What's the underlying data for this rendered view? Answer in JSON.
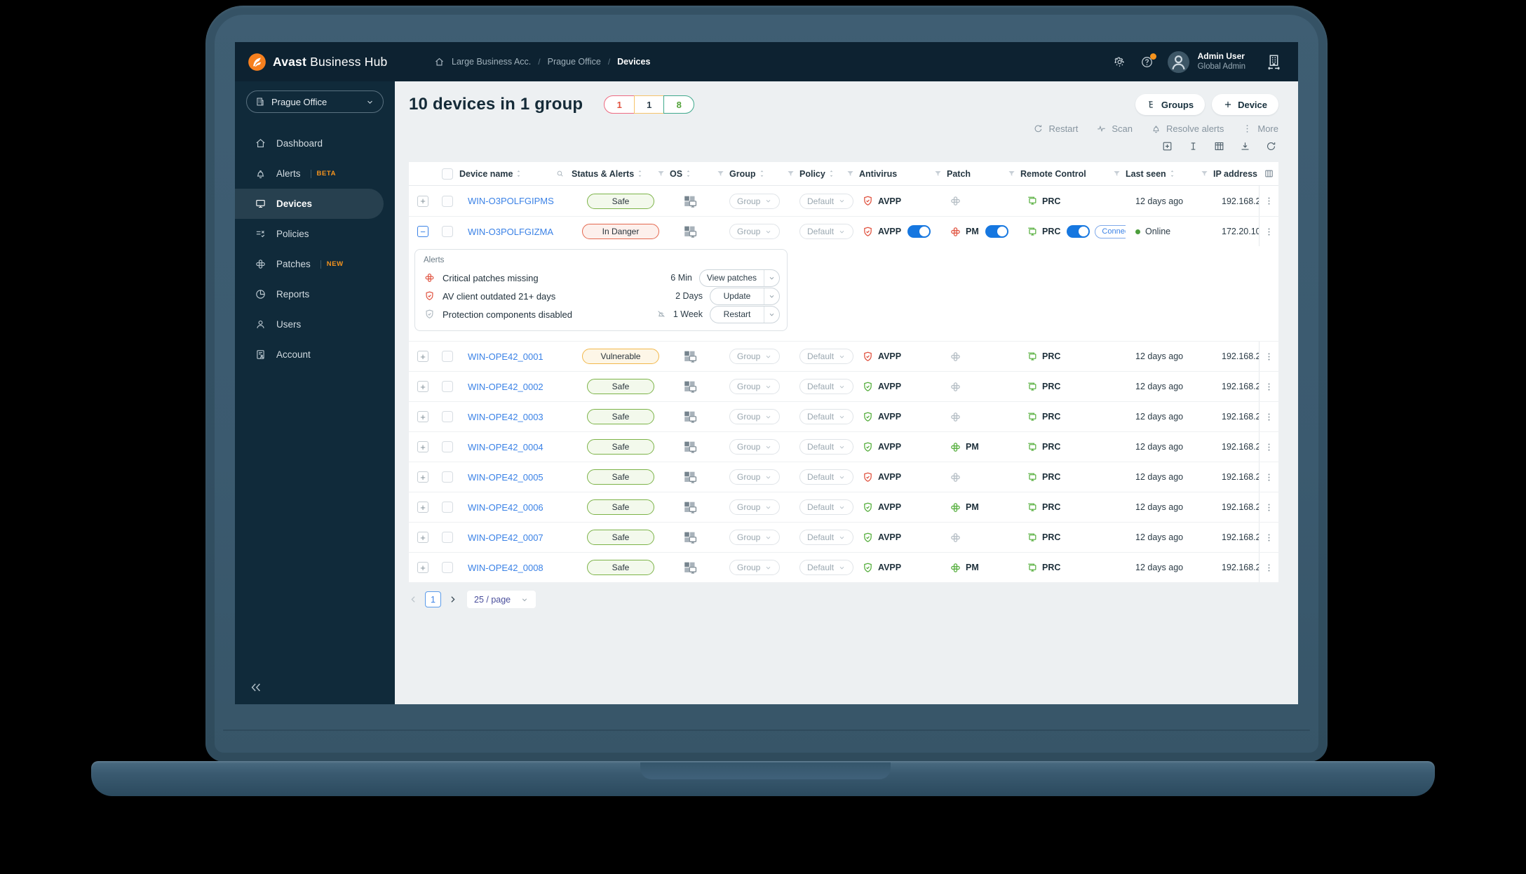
{
  "topbar": {
    "brand_bold": "Avast",
    "brand_rest": "Business Hub",
    "breadcrumb": [
      "Large Business Acc.",
      "Prague Office",
      "Devices"
    ],
    "user_name": "Admin User",
    "user_role": "Global Admin"
  },
  "sidebar": {
    "org": "Prague Office",
    "items": [
      {
        "icon": "dashboard-icon",
        "label": "Dashboard"
      },
      {
        "icon": "alerts-icon",
        "label": "Alerts",
        "badge": "BETA"
      },
      {
        "icon": "devices-icon",
        "label": "Devices",
        "active": true
      },
      {
        "icon": "policies-icon",
        "label": "Policies"
      },
      {
        "icon": "patches-icon",
        "label": "Patches",
        "badge": "NEW"
      },
      {
        "icon": "reports-icon",
        "label": "Reports"
      },
      {
        "icon": "users-icon",
        "label": "Users"
      },
      {
        "icon": "account-icon",
        "label": "Account"
      }
    ]
  },
  "header": {
    "title": "10 devices in 1 group",
    "badges": [
      {
        "value": "1",
        "border": "#ee6a81",
        "text": "#e0513f"
      },
      {
        "value": "1",
        "border": "#f6c36b",
        "text": "#2e3f4c"
      },
      {
        "value": "8",
        "border": "#3fa98c",
        "text": "#54a33a"
      }
    ],
    "buttons": [
      {
        "icon": "groups-icon",
        "label": "Groups"
      },
      {
        "icon": "plus-icon",
        "label": "Device"
      }
    ]
  },
  "toolbar": [
    {
      "icon": "restart-icon",
      "label": "Restart"
    },
    {
      "icon": "scan-icon",
      "label": "Scan"
    },
    {
      "icon": "bell-icon",
      "label": "Resolve alerts"
    },
    {
      "icon": "more-icon",
      "label": "More"
    }
  ],
  "controls": [
    "add-box-icon",
    "text-cursor-icon",
    "table-grid-icon",
    "download-icon",
    "refresh-icon"
  ],
  "table": {
    "columns": [
      {
        "key": "expander"
      },
      {
        "key": "checkbox"
      },
      {
        "label": "Device name",
        "sort": true,
        "search": true
      },
      {
        "label": "Status & Alerts",
        "sort": true,
        "filter": true
      },
      {
        "label": "OS",
        "sort": true,
        "filter": true
      },
      {
        "label": "Group",
        "sort": true,
        "filter": true
      },
      {
        "label": "Policy",
        "sort": true,
        "filter": true
      },
      {
        "label": "Antivirus",
        "filter": true
      },
      {
        "label": "Patch",
        "filter": true
      },
      {
        "label": "Remote Control",
        "filter": true
      },
      {
        "label": "Last seen",
        "sort": true,
        "filter": true
      },
      {
        "label": "IP address"
      },
      {
        "key": "actions",
        "icon": "columns-icon"
      }
    ],
    "rows": [
      {
        "name": "WIN-O3POLFGIPMS",
        "status": "Safe",
        "status_type": "safe",
        "group": "Group",
        "policy": "Default",
        "antivirus": "AVPP",
        "av_state": "red",
        "patch_state": "gray",
        "remote": "PRC",
        "last_seen": "12 days ago",
        "ip": "192.168.2"
      },
      {
        "name": "WIN-O3POLFGIZMA",
        "status": "In Danger",
        "status_type": "danger",
        "group": "Group",
        "policy": "Default",
        "antivirus": "AVPP",
        "av_state": "red",
        "av_toggle": true,
        "patch": "PM",
        "patch_state": "red",
        "patch_toggle": true,
        "remote": "PRC",
        "remote_toggle": true,
        "connect": "Connect",
        "online": "Online",
        "ip": "172.20.10",
        "expanded": true
      },
      {
        "name": "WIN-OPE42_0001",
        "status": "Vulnerable",
        "status_type": "vulnerable",
        "group": "Group",
        "policy": "Default",
        "antivirus": "AVPP",
        "av_state": "red",
        "patch_state": "gray",
        "remote": "PRC",
        "last_seen": "12 days ago",
        "ip": "192.168.2"
      },
      {
        "name": "WIN-OPE42_0002",
        "status": "Safe",
        "status_type": "safe",
        "group": "Group",
        "policy": "Default",
        "antivirus": "AVPP",
        "av_state": "green",
        "patch_state": "gray",
        "remote": "PRC",
        "last_seen": "12 days ago",
        "ip": "192.168.2"
      },
      {
        "name": "WIN-OPE42_0003",
        "status": "Safe",
        "status_type": "safe",
        "group": "Group",
        "policy": "Default",
        "antivirus": "AVPP",
        "av_state": "green",
        "patch_state": "gray",
        "remote": "PRC",
        "last_seen": "12 days ago",
        "ip": "192.168.2"
      },
      {
        "name": "WIN-OPE42_0004",
        "status": "Safe",
        "status_type": "safe",
        "group": "Group",
        "policy": "Default",
        "antivirus": "AVPP",
        "av_state": "green",
        "patch": "PM",
        "patch_state": "green",
        "remote": "PRC",
        "last_seen": "12 days ago",
        "ip": "192.168.2"
      },
      {
        "name": "WIN-OPE42_0005",
        "status": "Safe",
        "status_type": "safe",
        "group": "Group",
        "policy": "Default",
        "antivirus": "AVPP",
        "av_state": "red",
        "patch_state": "gray",
        "remote": "PRC",
        "last_seen": "12 days ago",
        "ip": "192.168.2"
      },
      {
        "name": "WIN-OPE42_0006",
        "status": "Safe",
        "status_type": "safe",
        "group": "Group",
        "policy": "Default",
        "antivirus": "AVPP",
        "av_state": "green",
        "patch": "PM",
        "patch_state": "green",
        "remote": "PRC",
        "last_seen": "12 days ago",
        "ip": "192.168.2"
      },
      {
        "name": "WIN-OPE42_0007",
        "status": "Safe",
        "status_type": "safe",
        "group": "Group",
        "policy": "Default",
        "antivirus": "AVPP",
        "av_state": "green",
        "patch_state": "gray",
        "remote": "PRC",
        "last_seen": "12 days ago",
        "ip": "192.168.2"
      },
      {
        "name": "WIN-OPE42_0008",
        "status": "Safe",
        "status_type": "safe",
        "group": "Group",
        "policy": "Default",
        "antivirus": "AVPP",
        "av_state": "green",
        "patch": "PM",
        "patch_state": "green",
        "remote": "PRC",
        "last_seen": "12 days ago",
        "ip": "192.168.2"
      }
    ]
  },
  "alerts_panel": {
    "title": "Alerts",
    "rows": [
      {
        "icon": "patch-alert-icon",
        "color": "red",
        "text": "Critical patches missing",
        "time": "6 Min",
        "action": "View patches"
      },
      {
        "icon": "shield-alert-icon",
        "color": "red",
        "text": "AV client outdated 21+ days",
        "time": "2 Days",
        "action": "Update"
      },
      {
        "icon": "shield-ok-icon",
        "color": "gray",
        "text": "Protection components disabled",
        "muted": true,
        "time": "1 Week",
        "action": "Restart"
      }
    ]
  },
  "pagination": {
    "page": "1",
    "page_size": "25 / page"
  },
  "colors": {
    "brand_orange": "#f7801e",
    "accent_blue": "#3b82e6",
    "toggle_blue": "#1677e0",
    "alert_red": "#e0523f",
    "ok_green": "#53ad3a",
    "safe_border": "#7cb348",
    "danger_border": "#e4674e",
    "vulnerable_border": "#f2b84b",
    "topbar_bg": "#0d2231",
    "sidebar_bg": "#102a3a"
  }
}
